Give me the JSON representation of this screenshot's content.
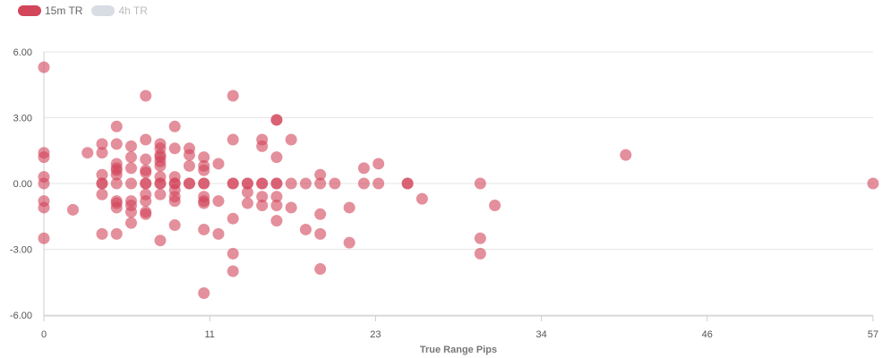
{
  "legend": [
    {
      "label": "15m TR",
      "color": "#d2455a",
      "active": true
    },
    {
      "label": "4h TR",
      "color": "#d8dce3",
      "active": false
    }
  ],
  "chart_data": {
    "type": "scatter",
    "xlabel": "True Range Pips",
    "ylabel": "",
    "xlim": [
      0,
      57
    ],
    "ylim": [
      -6,
      6
    ],
    "x_ticks": [
      "0",
      "11",
      "23",
      "34",
      "46",
      "57"
    ],
    "x_tick_values": [
      0,
      11.4,
      22.8,
      34.2,
      45.6,
      57
    ],
    "y_ticks": [
      "6.00",
      "3.00",
      "0.00",
      "-3.00",
      "-6.00"
    ],
    "y_tick_values": [
      6,
      3,
      0,
      -3,
      -6
    ],
    "grid": "horizontal",
    "series": [
      {
        "name": "15m TR",
        "color": "#d2455a",
        "points": [
          [
            0,
            5.3
          ],
          [
            0,
            1.4
          ],
          [
            0,
            1.2
          ],
          [
            0,
            0.3
          ],
          [
            0,
            0
          ],
          [
            0,
            -0.8
          ],
          [
            0,
            -1.1
          ],
          [
            0,
            -2.5
          ],
          [
            2,
            -1.2
          ],
          [
            3,
            1.4
          ],
          [
            4,
            1.8
          ],
          [
            4,
            1.4
          ],
          [
            4,
            0.4
          ],
          [
            4,
            0
          ],
          [
            4,
            0
          ],
          [
            4,
            -0.5
          ],
          [
            4,
            -2.3
          ],
          [
            5,
            2.6
          ],
          [
            5,
            1.8
          ],
          [
            5,
            0.9
          ],
          [
            5,
            0.7
          ],
          [
            5,
            0.6
          ],
          [
            5,
            0.4
          ],
          [
            5,
            0
          ],
          [
            5,
            -0.8
          ],
          [
            5,
            -0.9
          ],
          [
            5,
            -1.1
          ],
          [
            5,
            -2.3
          ],
          [
            6,
            1.7
          ],
          [
            6,
            1.2
          ],
          [
            6,
            0.7
          ],
          [
            6,
            0
          ],
          [
            6,
            -0.8
          ],
          [
            6,
            -1.0
          ],
          [
            6,
            -1.3
          ],
          [
            6,
            -1.8
          ],
          [
            7,
            4.0
          ],
          [
            7,
            2.0
          ],
          [
            7,
            1.1
          ],
          [
            7,
            0.6
          ],
          [
            7,
            0.5
          ],
          [
            7,
            0
          ],
          [
            7,
            0
          ],
          [
            7,
            -0.5
          ],
          [
            7,
            -0.8
          ],
          [
            7,
            -1.3
          ],
          [
            7,
            -1.4
          ],
          [
            8,
            1.8
          ],
          [
            8,
            1.6
          ],
          [
            8,
            1.3
          ],
          [
            8,
            1.2
          ],
          [
            8,
            1.0
          ],
          [
            8,
            0.8
          ],
          [
            8,
            0.3
          ],
          [
            8,
            0
          ],
          [
            8,
            0
          ],
          [
            8,
            -0.5
          ],
          [
            8,
            -2.6
          ],
          [
            9,
            2.6
          ],
          [
            9,
            1.6
          ],
          [
            9,
            0.3
          ],
          [
            9,
            0
          ],
          [
            9,
            0
          ],
          [
            9,
            -0.3
          ],
          [
            9,
            -0.6
          ],
          [
            9,
            -0.8
          ],
          [
            9,
            -1.9
          ],
          [
            10,
            1.6
          ],
          [
            10,
            1.3
          ],
          [
            10,
            0.8
          ],
          [
            10,
            0
          ],
          [
            10,
            0
          ],
          [
            11,
            1.2
          ],
          [
            11,
            0.8
          ],
          [
            11,
            0.6
          ],
          [
            11,
            0
          ],
          [
            11,
            0
          ],
          [
            11,
            -0.6
          ],
          [
            11,
            -0.8
          ],
          [
            11,
            -0.9
          ],
          [
            11,
            -2.1
          ],
          [
            11,
            -5.0
          ],
          [
            12,
            0.9
          ],
          [
            12,
            -0.8
          ],
          [
            12,
            -2.3
          ],
          [
            13,
            4.0
          ],
          [
            13,
            2.0
          ],
          [
            13,
            0
          ],
          [
            13,
            0
          ],
          [
            13,
            -1.6
          ],
          [
            13,
            -3.2
          ],
          [
            13,
            -4.0
          ],
          [
            14,
            0
          ],
          [
            14,
            0
          ],
          [
            14,
            -0.4
          ],
          [
            14,
            -0.9
          ],
          [
            15,
            2.0
          ],
          [
            15,
            1.7
          ],
          [
            15,
            0
          ],
          [
            15,
            0
          ],
          [
            15,
            -0.6
          ],
          [
            15,
            -1.0
          ],
          [
            16,
            2.9
          ],
          [
            16,
            2.9
          ],
          [
            16,
            1.2
          ],
          [
            16,
            0
          ],
          [
            16,
            0
          ],
          [
            16,
            -0.6
          ],
          [
            16,
            -1.0
          ],
          [
            16,
            -1.7
          ],
          [
            17,
            2.0
          ],
          [
            17,
            0
          ],
          [
            17,
            -1.1
          ],
          [
            18,
            0
          ],
          [
            18,
            -2.1
          ],
          [
            19,
            0.4
          ],
          [
            19,
            0
          ],
          [
            19,
            -1.4
          ],
          [
            19,
            -2.3
          ],
          [
            19,
            -3.9
          ],
          [
            20,
            0
          ],
          [
            21,
            -1.1
          ],
          [
            21,
            -2.7
          ],
          [
            22,
            0.7
          ],
          [
            22,
            0
          ],
          [
            23,
            0.9
          ],
          [
            23,
            0
          ],
          [
            25,
            0
          ],
          [
            25,
            0
          ],
          [
            26,
            -0.7
          ],
          [
            30,
            0
          ],
          [
            30,
            -2.5
          ],
          [
            30,
            -3.2
          ],
          [
            31,
            -1.0
          ],
          [
            40,
            1.3
          ],
          [
            57,
            0
          ]
        ]
      }
    ]
  }
}
